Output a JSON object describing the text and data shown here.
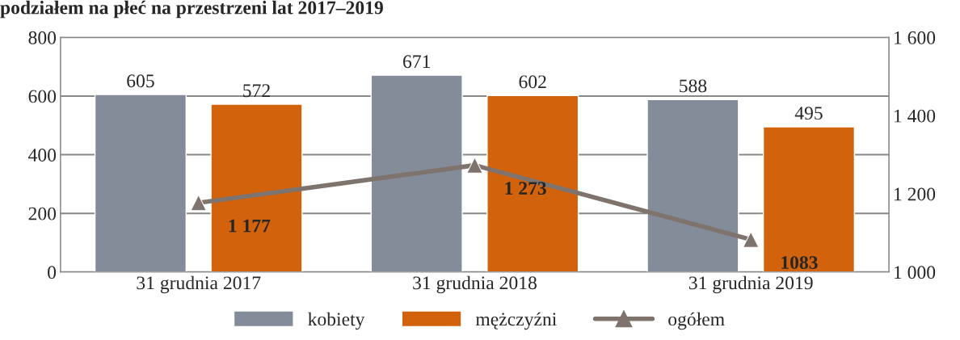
{
  "chart_data": {
    "type": "bar",
    "title": "podziałem na płeć na przestrzeni lat 2017–2019",
    "categories": [
      "31 grudnia 2017",
      "31 grudnia 2018",
      "31 grudnia 2019"
    ],
    "series": [
      {
        "name": "kobiety",
        "color": "#848c99",
        "values": [
          605,
          671,
          588
        ],
        "value_labels": [
          "605",
          "671",
          "588"
        ]
      },
      {
        "name": "mężczyźni",
        "color": "#d2620c",
        "values": [
          572,
          602,
          495
        ],
        "value_labels": [
          "572",
          "602",
          "495"
        ]
      },
      {
        "name": "ogółem",
        "type": "line",
        "axis": "y2",
        "color": "#7f736e",
        "marker": "triangle",
        "values": [
          1177,
          1273,
          1083
        ],
        "value_labels": [
          "1 177",
          "1 273",
          "1083"
        ]
      }
    ],
    "ylim": [
      0,
      800
    ],
    "yticks": [
      0,
      200,
      400,
      600,
      800
    ],
    "y2lim": [
      1000,
      1600
    ],
    "y2ticks": [
      {
        "value": 1000,
        "label": "1 000"
      },
      {
        "value": 1200,
        "label": "1 200"
      },
      {
        "value": 1400,
        "label": "1 400"
      },
      {
        "value": 1600,
        "label": "1 600"
      }
    ],
    "grid": "y",
    "legend": "bottom"
  }
}
